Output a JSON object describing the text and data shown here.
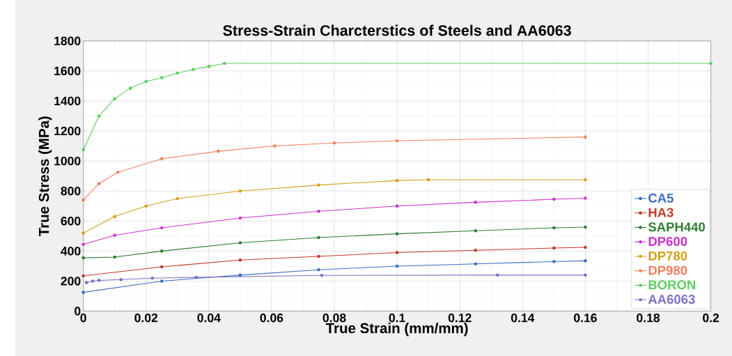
{
  "chart_data": {
    "type": "line",
    "title": "Stress-Strain Charcterstics of Steels and AA6063",
    "xlabel": "True Strain (mm/mm)",
    "ylabel": "True Stress (MPa)",
    "xlim": [
      0,
      0.2
    ],
    "ylim": [
      0,
      1800
    ],
    "xticks": [
      0,
      0.02,
      0.04,
      0.06,
      0.08,
      0.1,
      0.12,
      0.14,
      0.16,
      0.18,
      0.2
    ],
    "yticks": [
      0,
      200,
      400,
      600,
      800,
      1000,
      1200,
      1400,
      1600,
      1800
    ],
    "grid": true,
    "legend": "right",
    "marker": "circle",
    "line_style": "solid",
    "series": [
      {
        "name": "CA5",
        "color": "#3a6fc4",
        "x": [
          0,
          0.025,
          0.05,
          0.075,
          0.1,
          0.125,
          0.15,
          0.16
        ],
        "values": [
          125,
          200,
          240,
          275,
          300,
          315,
          330,
          335
        ]
      },
      {
        "name": "HA3",
        "color": "#c0392b",
        "x": [
          0,
          0.025,
          0.05,
          0.075,
          0.1,
          0.125,
          0.15,
          0.16
        ],
        "values": [
          235,
          295,
          340,
          365,
          390,
          405,
          420,
          425
        ]
      },
      {
        "name": "SAPH440",
        "color": "#2e7d32",
        "x": [
          0,
          0.01,
          0.025,
          0.05,
          0.075,
          0.1,
          0.125,
          0.15,
          0.16
        ],
        "values": [
          355,
          360,
          400,
          455,
          490,
          515,
          535,
          555,
          560
        ]
      },
      {
        "name": "DP600",
        "color": "#cc33cc",
        "x": [
          0,
          0.01,
          0.025,
          0.05,
          0.075,
          0.1,
          0.125,
          0.15,
          0.16
        ],
        "values": [
          445,
          505,
          555,
          620,
          665,
          700,
          725,
          745,
          752
        ]
      },
      {
        "name": "DP780",
        "color": "#d4a017",
        "x": [
          0,
          0.01,
          0.02,
          0.03,
          0.05,
          0.075,
          0.1,
          0.11,
          0.16
        ],
        "values": [
          520,
          630,
          700,
          750,
          800,
          840,
          870,
          875,
          875
        ]
      },
      {
        "name": "DP980",
        "color": "#f08060",
        "x": [
          0,
          0.005,
          0.011,
          0.025,
          0.043,
          0.061,
          0.08,
          0.1,
          0.16
        ],
        "values": [
          740,
          850,
          925,
          1015,
          1065,
          1100,
          1120,
          1135,
          1160
        ]
      },
      {
        "name": "BORON",
        "color": "#5ccc5c",
        "x": [
          0,
          0.005,
          0.01,
          0.015,
          0.02,
          0.025,
          0.03,
          0.035,
          0.04,
          0.045,
          0.2
        ],
        "values": [
          1075,
          1300,
          1415,
          1485,
          1530,
          1555,
          1585,
          1610,
          1630,
          1650,
          1650
        ]
      },
      {
        "name": "AA6063",
        "color": "#8070c0",
        "x": [
          0.001,
          0.003,
          0.005,
          0.012,
          0.022,
          0.036,
          0.076,
          0.132,
          0.16
        ],
        "values": [
          190,
          200,
          205,
          210,
          220,
          225,
          238,
          240,
          240
        ]
      }
    ]
  }
}
